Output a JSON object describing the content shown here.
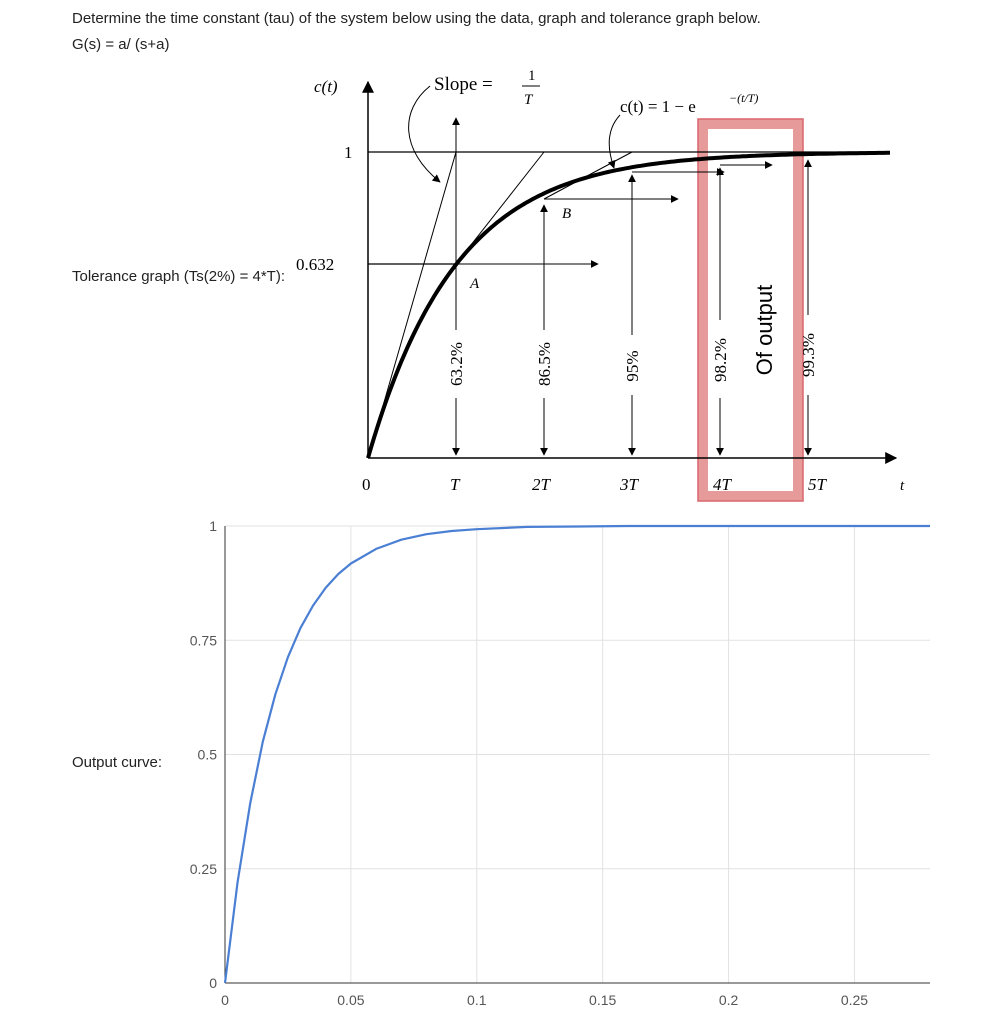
{
  "question": {
    "line1": "Determine the time constant (tau) of the system below using the data, graph and tolerance graph below.",
    "line2": "G(s) = a/ (s+a)"
  },
  "labels": {
    "tolerance": "Tolerance graph (Ts(2%) = 4*T):",
    "output": "Output curve:"
  },
  "tolerance_graph": {
    "y_axis_label": "c(t)",
    "t_axis_label": "t",
    "y_tick_1": "1",
    "y_tick_0632": "0.632",
    "origin": "0",
    "slope_label": "Slope = ",
    "slope_num": "1",
    "slope_den": "T",
    "equation": "c(t) = 1 − e",
    "equation_exp": "−(t/T)",
    "point_a": "A",
    "point_b": "B",
    "t_ticks": [
      "T",
      "2T",
      "3T",
      "4T",
      "5T"
    ],
    "percents": [
      "63.2%",
      "86.5%",
      "95%",
      "98.2%",
      "99.3%"
    ],
    "highlight_text": "Of output",
    "highlight_color": "#e69a9a",
    "highlight_border": "#d9676e"
  },
  "chart_data": {
    "type": "line",
    "title": "",
    "xlabel": "",
    "ylabel": "",
    "xlim": [
      0,
      0.28
    ],
    "ylim": [
      0,
      1
    ],
    "x_ticks": [
      "0",
      "0.05",
      "0.1",
      "0.15",
      "0.2",
      "0.25"
    ],
    "y_ticks": [
      "0",
      "0.25",
      "0.5",
      "0.75",
      "1"
    ],
    "grid": true,
    "line_color": "#4a7fd4",
    "time_constant_estimate": 0.02,
    "series": [
      {
        "x": [
          0,
          0.005,
          0.01,
          0.015,
          0.02,
          0.025,
          0.03,
          0.035,
          0.04,
          0.045,
          0.05,
          0.06,
          0.07,
          0.08,
          0.09,
          0.1,
          0.12,
          0.14,
          0.16,
          0.18,
          0.2,
          0.22,
          0.24,
          0.26,
          0.28
        ],
        "values": [
          0,
          0.221,
          0.393,
          0.528,
          0.632,
          0.713,
          0.777,
          0.826,
          0.865,
          0.895,
          0.918,
          0.95,
          0.97,
          0.982,
          0.989,
          0.993,
          0.998,
          0.999,
          1,
          1,
          1,
          1,
          1,
          1,
          1
        ]
      }
    ]
  }
}
